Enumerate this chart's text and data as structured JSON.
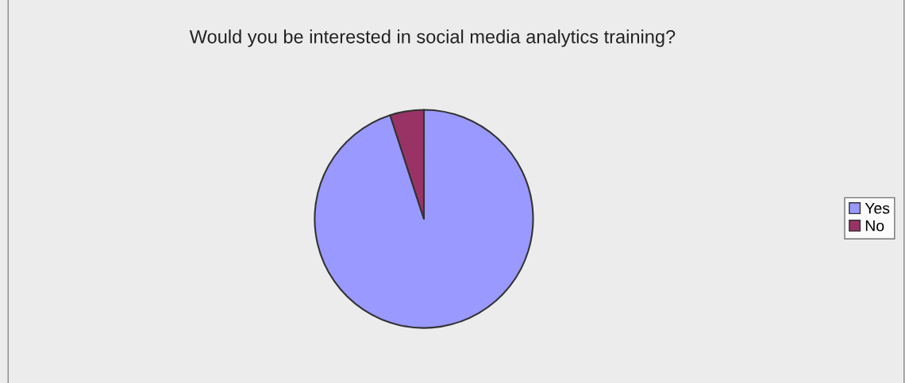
{
  "chart_data": {
    "type": "pie",
    "title": "Would you be interested in social media analytics training?",
    "categories": [
      "Yes",
      "No"
    ],
    "values": [
      95,
      5
    ],
    "colors": [
      "#9999ff",
      "#993366"
    ],
    "legend": "right"
  }
}
